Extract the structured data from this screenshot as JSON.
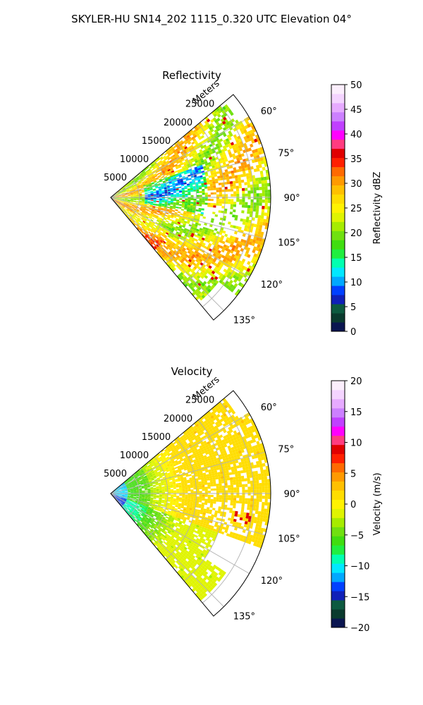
{
  "figure": {
    "suptitle": "SKYLER-HU  SN14_202  1115_0.320 UTC Elevation 04°"
  },
  "chart_data": [
    {
      "type": "heatmap",
      "projection": "polar-sector",
      "title": "Reflectivity",
      "range_axis_label": "Meters",
      "range_ticks": [
        5000,
        10000,
        15000,
        20000,
        25000
      ],
      "range_tick_labels": [
        "5000",
        "10000",
        "15000",
        "20000",
        "25000"
      ],
      "azimuth_range_deg": [
        50,
        140
      ],
      "azimuth_ticks": [
        60,
        75,
        90,
        105,
        120,
        135
      ],
      "azimuth_tick_labels": [
        "60°",
        "75°",
        "90°",
        "105°",
        "120°",
        "135°"
      ],
      "max_range_m": 28000,
      "grid": true,
      "colorbar": {
        "label": "Reflectivity dBZ",
        "range": [
          0,
          50
        ],
        "ticks": [
          0,
          5,
          10,
          15,
          20,
          25,
          30,
          35,
          40,
          45,
          50
        ],
        "tick_labels": [
          "0",
          "5",
          "10",
          "15",
          "20",
          "25",
          "30",
          "35",
          "40",
          "45",
          "50"
        ],
        "colors": [
          "#0a1550",
          "#0a3a2e",
          "#0d5a40",
          "#1020b8",
          "#0040ff",
          "#00a8ff",
          "#00e8ff",
          "#00ffb0",
          "#20ee40",
          "#40dd10",
          "#70e010",
          "#a6ec00",
          "#dff400",
          "#fff200",
          "#ffdd00",
          "#ffc000",
          "#ff9a00",
          "#ff6a00",
          "#ff2000",
          "#e00000",
          "#ff3c80",
          "#ff00ff",
          "#c040ff",
          "#cc80ff",
          "#e6aaff",
          "#f4d4ff",
          "#fbeefc"
        ]
      }
    },
    {
      "type": "heatmap",
      "projection": "polar-sector",
      "title": "Velocity",
      "range_axis_label": "Meters",
      "range_ticks": [
        5000,
        10000,
        15000,
        20000,
        25000
      ],
      "range_tick_labels": [
        "5000",
        "10000",
        "15000",
        "20000",
        "25000"
      ],
      "azimuth_range_deg": [
        50,
        140
      ],
      "azimuth_ticks": [
        60,
        75,
        90,
        105,
        120,
        135
      ],
      "azimuth_tick_labels": [
        "60°",
        "75°",
        "90°",
        "105°",
        "120°",
        "135°"
      ],
      "max_range_m": 28000,
      "grid": true,
      "colorbar": {
        "label": "Velocity (m/s)",
        "range": [
          -20,
          20
        ],
        "ticks": [
          -20,
          -15,
          -10,
          -5,
          0,
          5,
          10,
          15,
          20
        ],
        "tick_labels": [
          "−20",
          "−15",
          "−10",
          "−5",
          "0",
          "5",
          "10",
          "15",
          "20"
        ],
        "colors": [
          "#0a1550",
          "#0a3a2e",
          "#0d5a40",
          "#1020b8",
          "#0040ff",
          "#00a8ff",
          "#00e8ff",
          "#00ffb0",
          "#20ee40",
          "#40dd10",
          "#70e010",
          "#a6ec00",
          "#dff400",
          "#fff200",
          "#ffdd00",
          "#ffc000",
          "#ff9a00",
          "#ff6a00",
          "#ff2000",
          "#e00000",
          "#ff3c80",
          "#ff00ff",
          "#c040ff",
          "#cc80ff",
          "#e6aaff",
          "#f4d4ff",
          "#fbeefc"
        ]
      }
    }
  ]
}
